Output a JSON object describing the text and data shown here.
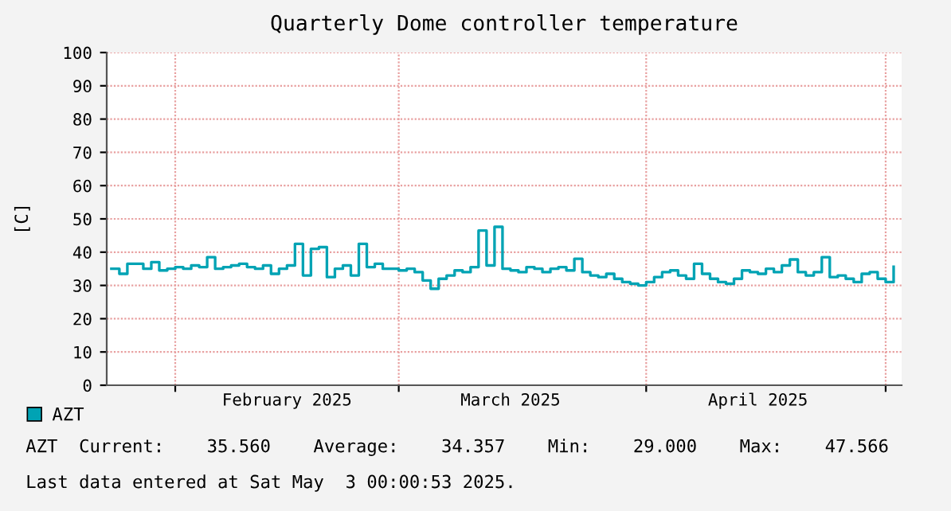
{
  "chart_data": {
    "type": "step",
    "title": "Quarterly Dome controller temperature",
    "ylabel": "[C]",
    "x": [
      "2025-01-24",
      "2025-01-25",
      "2025-01-26",
      "2025-01-27",
      "2025-01-28",
      "2025-01-29",
      "2025-01-30",
      "2025-01-31",
      "2025-02-01",
      "2025-02-02",
      "2025-02-03",
      "2025-02-04",
      "2025-02-05",
      "2025-02-06",
      "2025-02-07",
      "2025-02-08",
      "2025-02-09",
      "2025-02-10",
      "2025-02-11",
      "2025-02-12",
      "2025-02-13",
      "2025-02-14",
      "2025-02-15",
      "2025-02-16",
      "2025-02-17",
      "2025-02-18",
      "2025-02-19",
      "2025-02-20",
      "2025-02-21",
      "2025-02-22",
      "2025-02-23",
      "2025-02-24",
      "2025-02-25",
      "2025-02-26",
      "2025-02-27",
      "2025-02-28",
      "2025-03-01",
      "2025-03-02",
      "2025-03-03",
      "2025-03-04",
      "2025-03-05",
      "2025-03-06",
      "2025-03-07",
      "2025-03-08",
      "2025-03-09",
      "2025-03-10",
      "2025-03-11",
      "2025-03-12",
      "2025-03-13",
      "2025-03-14",
      "2025-03-15",
      "2025-03-16",
      "2025-03-17",
      "2025-03-18",
      "2025-03-19",
      "2025-03-20",
      "2025-03-21",
      "2025-03-22",
      "2025-03-23",
      "2025-03-24",
      "2025-03-25",
      "2025-03-26",
      "2025-03-27",
      "2025-03-28",
      "2025-03-29",
      "2025-03-30",
      "2025-03-31",
      "2025-04-01",
      "2025-04-02",
      "2025-04-03",
      "2025-04-04",
      "2025-04-05",
      "2025-04-06",
      "2025-04-07",
      "2025-04-08",
      "2025-04-09",
      "2025-04-10",
      "2025-04-11",
      "2025-04-12",
      "2025-04-13",
      "2025-04-14",
      "2025-04-15",
      "2025-04-16",
      "2025-04-17",
      "2025-04-18",
      "2025-04-19",
      "2025-04-20",
      "2025-04-21",
      "2025-04-22",
      "2025-04-23",
      "2025-04-24",
      "2025-04-25",
      "2025-04-26",
      "2025-04-27",
      "2025-04-28",
      "2025-04-29",
      "2025-04-30",
      "2025-05-01",
      "2025-05-02"
    ],
    "series": [
      {
        "name": "AZT",
        "color": "#00a3b4",
        "values": [
          35,
          33.5,
          36.5,
          36.5,
          35,
          37,
          34.5,
          35,
          35.5,
          35,
          36,
          35.5,
          38.5,
          35,
          35.5,
          36,
          36.5,
          35.5,
          35,
          36,
          33.5,
          35,
          36,
          42.5,
          33,
          41,
          41.5,
          32.5,
          35,
          36,
          33,
          42.5,
          35.5,
          36.5,
          35,
          35,
          34.5,
          35,
          34,
          31.5,
          29.0,
          32,
          33,
          34.5,
          34,
          35.5,
          46.5,
          36,
          47.6,
          35,
          34.5,
          34,
          35.5,
          35,
          34,
          35,
          35.5,
          34.5,
          38,
          34,
          33,
          32.5,
          33.5,
          32,
          31,
          30.5,
          30,
          31,
          32.5,
          34,
          34.5,
          33,
          32,
          36.5,
          33.5,
          32,
          31,
          30.5,
          32,
          34.5,
          34,
          33.5,
          35,
          34,
          36,
          37.8,
          34,
          33,
          34,
          38.5,
          32.5,
          33,
          32,
          31,
          33.5,
          34,
          32,
          31,
          35.6
        ]
      }
    ],
    "xlim": [
      "2025-01-23T10:00",
      "2025-05-03T00:00"
    ],
    "xticks": [
      {
        "value": "2025-02-01",
        "label": null
      },
      {
        "value": "2025-02-15",
        "label": "February 2025"
      },
      {
        "value": "2025-03-01",
        "label": null
      },
      {
        "value": "2025-03-15",
        "label": "March 2025"
      },
      {
        "value": "2025-04-01",
        "label": null
      },
      {
        "value": "2025-04-15",
        "label": "April 2025"
      },
      {
        "value": "2025-05-01",
        "label": null
      }
    ],
    "ylim": [
      0,
      100
    ],
    "yticks": [
      0,
      10,
      20,
      30,
      40,
      50,
      60,
      70,
      80,
      90,
      100
    ],
    "grid": true,
    "legend": "bottom",
    "annotations": [
      "AZT  Current:    35.560    Average:    34.357    Min:    29.000    Max:    47.566",
      "Last data entered at Sat May  3 00:00:53 2025."
    ]
  }
}
